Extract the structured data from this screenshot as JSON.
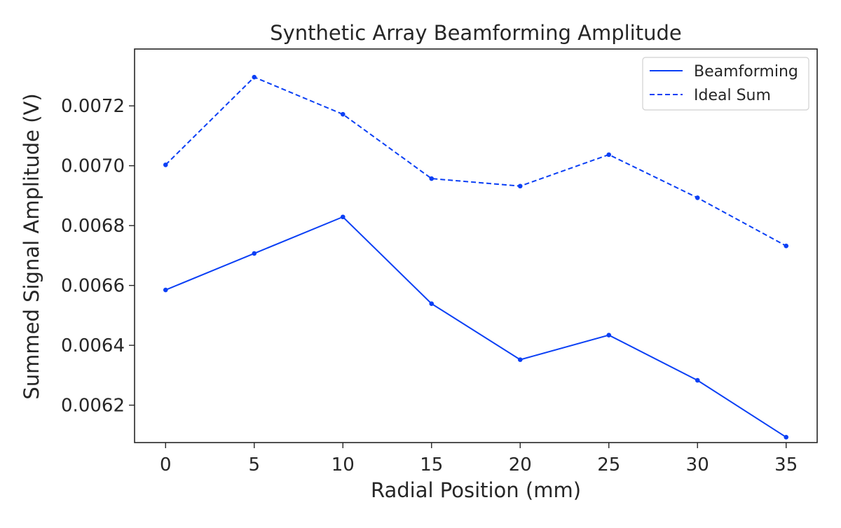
{
  "chart_data": {
    "type": "line",
    "title": "Synthetic Array Beamforming Amplitude",
    "xlabel": "Radial Position (mm)",
    "ylabel": "Summed Signal Amplitude (V)",
    "x": [
      0,
      5,
      10,
      15,
      20,
      25,
      30,
      35
    ],
    "xticks": [
      0,
      5,
      10,
      15,
      20,
      25,
      30,
      35
    ],
    "xtick_labels": [
      "0",
      "5",
      "10",
      "15",
      "20",
      "25",
      "30",
      "35"
    ],
    "yticks": [
      0.0062,
      0.0064,
      0.0066,
      0.0068,
      0.007,
      0.0072
    ],
    "ytick_labels": [
      "0.0062",
      "0.0064",
      "0.0066",
      "0.0068",
      "0.0070",
      "0.0072"
    ],
    "xlim": [
      -1.75,
      36.75
    ],
    "ylim": [
      0.006075,
      0.00739
    ],
    "grid": false,
    "legend_position": "top-right",
    "series": [
      {
        "name": "Beamforming",
        "style": "solid",
        "color": "#0a3ff5",
        "values": [
          0.006585,
          0.006707,
          0.006829,
          0.006539,
          0.006352,
          0.006434,
          0.006283,
          0.006093
        ]
      },
      {
        "name": "Ideal Sum",
        "style": "dashed",
        "color": "#0a3ff5",
        "values": [
          0.007003,
          0.007296,
          0.007172,
          0.006957,
          0.006932,
          0.007037,
          0.006893,
          0.006732
        ]
      }
    ]
  }
}
